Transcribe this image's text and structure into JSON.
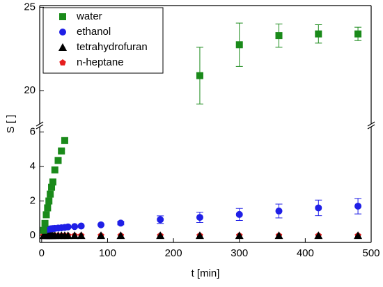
{
  "chart_data": {
    "type": "scatter",
    "xlabel": "t [min]",
    "ylabel": "S [ ]",
    "xlim": [
      -3,
      500
    ],
    "xticks": [
      0,
      100,
      200,
      300,
      400,
      500
    ],
    "ylim": [
      -0.4,
      25.1
    ],
    "ybreak": [
      6.3,
      18
    ],
    "yticks": [
      0,
      2,
      4,
      6,
      20,
      25
    ],
    "legend": "upper left",
    "x": [
      3,
      5,
      7,
      9,
      11,
      13,
      15,
      17,
      20,
      25,
      30,
      35,
      40,
      50,
      60,
      90,
      120,
      180,
      240,
      300,
      360,
      420,
      480
    ],
    "series": [
      {
        "name": "water",
        "color": "#1a8a1a",
        "marker": "square",
        "values": [
          0.3,
          0.7,
          1.2,
          1.6,
          2.0,
          2.4,
          2.8,
          3.1,
          3.8,
          4.35,
          4.9,
          5.5,
          null,
          null,
          null,
          null,
          null,
          null,
          20.9,
          22.75,
          23.3,
          23.4,
          23.4
        ],
        "errors": [
          null,
          null,
          null,
          null,
          null,
          null,
          null,
          null,
          null,
          null,
          0.1,
          0.15,
          null,
          null,
          null,
          null,
          null,
          null,
          1.7,
          1.3,
          0.7,
          0.55,
          0.4
        ]
      },
      {
        "name": "ethanol",
        "color": "#1f1fe6",
        "marker": "circle",
        "values": [
          0.3,
          0.32,
          0.34,
          0.36,
          0.37,
          0.38,
          0.39,
          0.4,
          0.41,
          0.43,
          0.45,
          0.47,
          0.5,
          0.52,
          0.55,
          0.62,
          0.72,
          0.92,
          1.05,
          1.22,
          1.42,
          1.6,
          1.7
        ],
        "errors": [
          null,
          null,
          null,
          null,
          null,
          null,
          null,
          null,
          null,
          null,
          null,
          null,
          null,
          null,
          null,
          null,
          0.1,
          0.22,
          0.3,
          0.35,
          0.4,
          0.45,
          0.45
        ]
      },
      {
        "name": "tetrahydrofuran",
        "color": "#000000",
        "marker": "triangle",
        "values": [
          0,
          0,
          0,
          0,
          0,
          0,
          0,
          0,
          0,
          0,
          0,
          0,
          0,
          0,
          0,
          0,
          0,
          0,
          0,
          0,
          0,
          0,
          0
        ]
      },
      {
        "name": "n-heptane",
        "color": "#e61e1e",
        "marker": "pentagon",
        "values": [
          0,
          0,
          0,
          0,
          0,
          0,
          0,
          0,
          0,
          0,
          0,
          0,
          0,
          0,
          0,
          0,
          0,
          0,
          0,
          0,
          0,
          0,
          0
        ]
      }
    ]
  }
}
